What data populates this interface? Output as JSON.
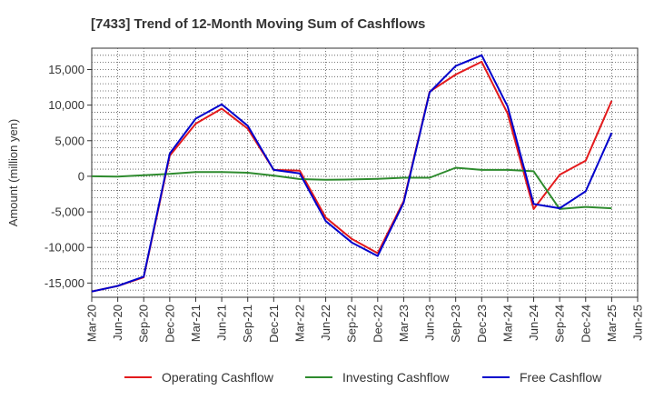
{
  "chart_data": {
    "type": "line",
    "title": "[7433]  Trend of 12-Month Moving Sum of Cashflows",
    "xlabel": "",
    "ylabel": "Amount (million yen)",
    "ylim": [
      -17000,
      18000
    ],
    "yticks": [
      -15000,
      -10000,
      -5000,
      0,
      5000,
      10000,
      15000
    ],
    "ytick_labels": [
      "-15,000",
      "-10,000",
      "-5,000",
      "0",
      "5,000",
      "10,000",
      "15,000"
    ],
    "x_tick_labels": [
      "Mar-20",
      "Jun-20",
      "Sep-20",
      "Dec-20",
      "Mar-21",
      "Jun-21",
      "Sep-21",
      "Dec-21",
      "Mar-22",
      "Jun-22",
      "Sep-22",
      "Dec-22",
      "Mar-23",
      "Jun-23",
      "Sep-23",
      "Dec-23",
      "Mar-24",
      "Jun-24",
      "Sep-24",
      "Dec-24",
      "Mar-25",
      "Jun-25"
    ],
    "grid": true,
    "legend_position": "bottom",
    "series": [
      {
        "name": "Operating Cashflow",
        "color": "#e31a1c",
        "values": [
          -16200,
          -15400,
          -14200,
          2900,
          7400,
          9500,
          6700,
          900,
          800,
          -5800,
          -8800,
          -10800,
          -3500,
          11900,
          14300,
          16100,
          8800,
          -4600,
          200,
          2200,
          10600
        ]
      },
      {
        "name": "Investing Cashflow",
        "color": "#2e8b2e",
        "values": [
          0,
          -50,
          150,
          350,
          600,
          600,
          500,
          100,
          -400,
          -500,
          -450,
          -350,
          -200,
          -200,
          1200,
          900,
          900,
          700,
          -4600,
          -4300,
          -4500
        ]
      },
      {
        "name": "Free Cashflow",
        "color": "#0000cc",
        "values": [
          -16200,
          -15400,
          -14100,
          3200,
          8100,
          10100,
          7100,
          900,
          400,
          -6300,
          -9300,
          -11200,
          -3700,
          11800,
          15500,
          17000,
          9800,
          -3900,
          -4500,
          -2100,
          6100
        ]
      }
    ]
  }
}
